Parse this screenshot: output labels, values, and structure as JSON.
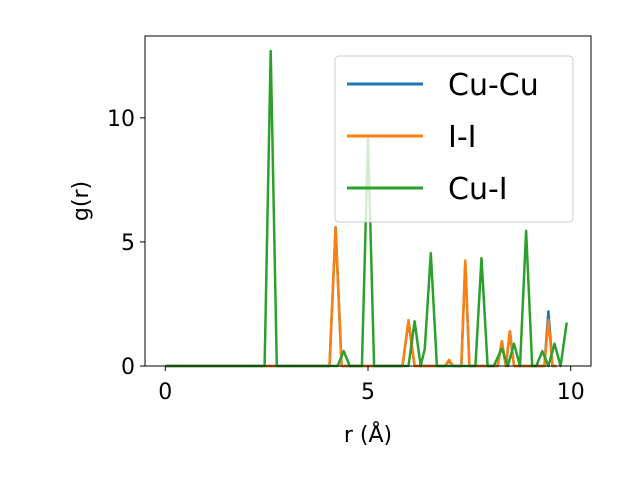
{
  "chart_data": {
    "type": "line",
    "title": "",
    "xlabel": "r (Å)",
    "ylabel": "g(r)",
    "xlim": [
      -0.5,
      10.5
    ],
    "ylim": [
      0,
      13.3
    ],
    "xticks": [
      0,
      5,
      10
    ],
    "yticks": [
      0,
      5,
      10
    ],
    "xtick_labels": [
      "0",
      "5",
      "10"
    ],
    "ytick_labels": [
      "0",
      "5",
      "10"
    ],
    "grid": false,
    "legend_position": "top-right",
    "series": [
      {
        "name": "Cu-Cu",
        "color": "#1f77b4",
        "x": [
          0,
          4.05,
          4.2,
          4.35,
          5.85,
          6.0,
          6.15,
          6.9,
          7.0,
          7.1,
          7.3,
          7.4,
          7.5,
          8.2,
          8.3,
          8.4,
          8.5,
          8.6,
          8.7,
          9.35,
          9.45,
          9.55,
          9.65
        ],
        "y": [
          0,
          0,
          5.6,
          0,
          0,
          1.8,
          0,
          0,
          0.2,
          0,
          0,
          4.2,
          0,
          0,
          1.0,
          0,
          1.4,
          0,
          0,
          0,
          2.2,
          0,
          0
        ]
      },
      {
        "name": "I-I",
        "color": "#ff7f0e",
        "x": [
          0,
          4.05,
          4.2,
          4.35,
          5.85,
          6.0,
          6.15,
          6.9,
          7.0,
          7.1,
          7.3,
          7.4,
          7.5,
          8.2,
          8.3,
          8.4,
          8.5,
          8.6,
          8.7,
          9.35,
          9.45,
          9.55,
          9.65
        ],
        "y": [
          0,
          0,
          5.6,
          0,
          0,
          1.85,
          0,
          0,
          0.25,
          0,
          0,
          4.25,
          0,
          0,
          1.0,
          0,
          1.4,
          0,
          0,
          0,
          1.85,
          0,
          0
        ]
      },
      {
        "name": "Cu-I",
        "color": "#2ca02c",
        "x": [
          0,
          2.45,
          2.6,
          2.75,
          4.25,
          4.4,
          4.55,
          4.85,
          5.0,
          5.15,
          6.0,
          6.15,
          6.3,
          6.4,
          6.55,
          6.7,
          7.65,
          7.8,
          7.95,
          8.1,
          8.3,
          8.45,
          8.6,
          8.75,
          8.9,
          9.05,
          9.15,
          9.3,
          9.45,
          9.6,
          9.75,
          9.9
        ],
        "y": [
          0,
          0,
          12.7,
          0,
          0,
          0.6,
          0,
          0,
          9.2,
          0,
          0,
          1.8,
          0,
          0.7,
          4.55,
          0,
          0,
          4.35,
          0,
          0,
          0.7,
          0,
          0.9,
          0,
          5.45,
          0,
          0,
          0.6,
          0,
          0.9,
          0,
          1.75
        ]
      }
    ]
  }
}
